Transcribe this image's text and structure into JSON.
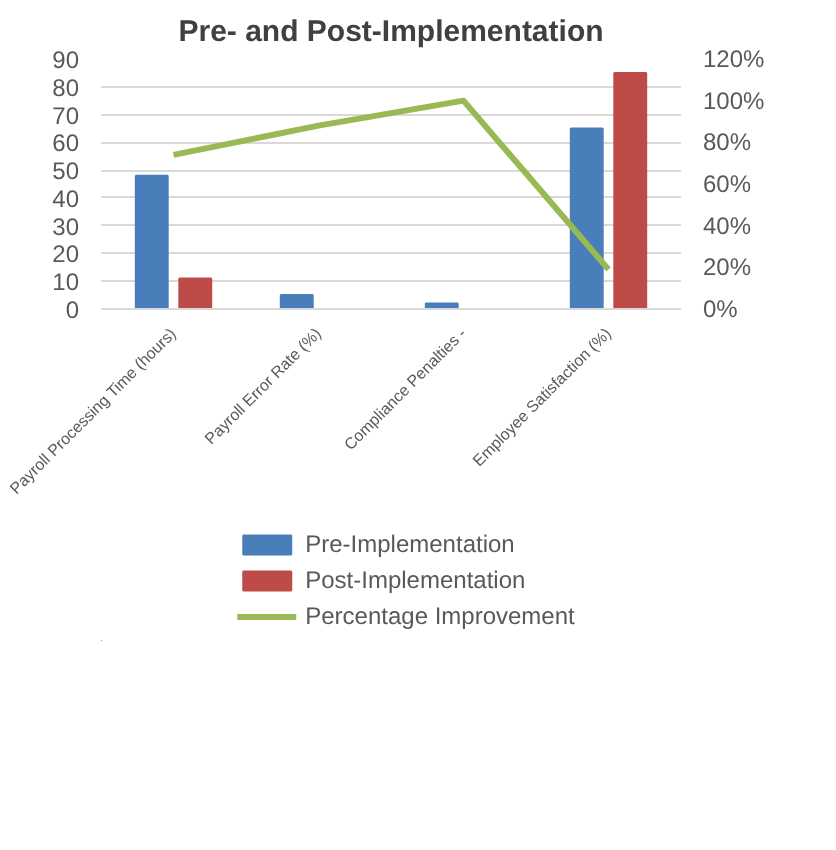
{
  "chart_data": {
    "type": "bar",
    "title": "Pre- and Post-Implementation",
    "categories": [
      "Payroll Processing Time (hours)",
      "Payroll Error Rate (%)",
      "Compliance Penalties -",
      "Employee Satisfaction (%)"
    ],
    "series": [
      {
        "name": "Pre-Implementation",
        "color": "#4a7ebb",
        "values": [
          48,
          5,
          2,
          65
        ]
      },
      {
        "name": "Post-Implementation",
        "color": "#be4b48",
        "values": [
          11,
          null,
          null,
          85
        ]
      },
      {
        "name": "Percentage Improvement",
        "type": "line",
        "axis": "y2",
        "color": "#98b954",
        "values": [
          74,
          88,
          100,
          19
        ]
      }
    ],
    "ylim": [
      0,
      90
    ],
    "yticks": [
      0,
      10,
      20,
      30,
      40,
      50,
      60,
      70,
      80,
      90
    ],
    "y2lim": [
      0,
      120
    ],
    "y2ticks": [
      {
        "value": 0,
        "label": "0%"
      },
      {
        "value": 20,
        "label": "20%"
      },
      {
        "value": 40,
        "label": "40%"
      },
      {
        "value": 60,
        "label": "60%"
      },
      {
        "value": 80,
        "label": "80%"
      },
      {
        "value": 100,
        "label": "100%"
      },
      {
        "value": 120,
        "label": "120%"
      }
    ],
    "grid": "y",
    "legend": "bottom",
    "marker": "none",
    "line_style": "solid"
  }
}
